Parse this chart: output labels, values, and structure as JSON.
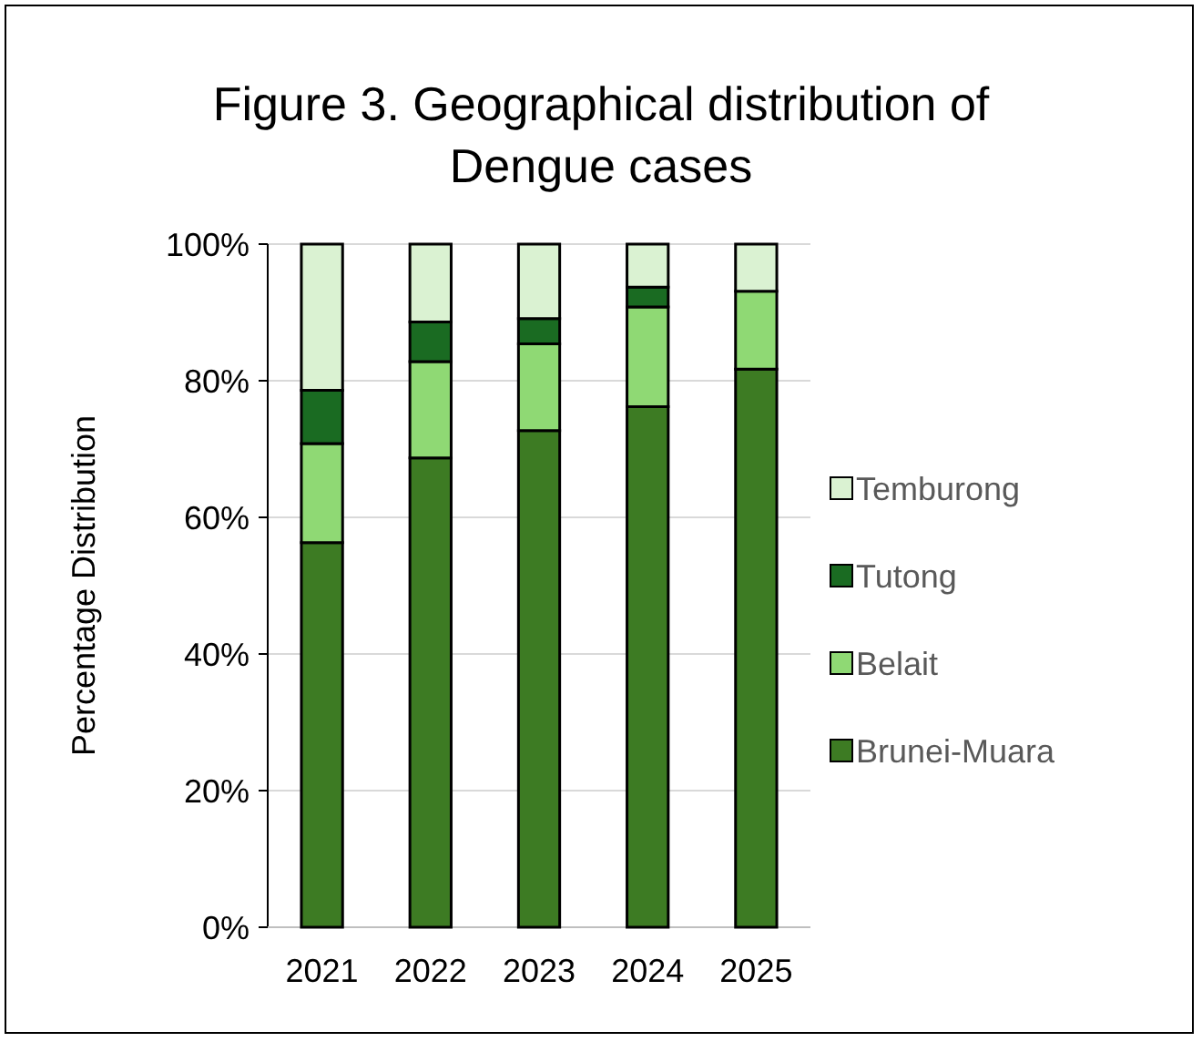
{
  "chart_data": {
    "type": "bar",
    "title": "Figure 3. Geographical distribution of Dengue cases",
    "ylabel": "Percentage Distribution",
    "categories": [
      "2021",
      "2022",
      "2023",
      "2024",
      "2025"
    ],
    "stacked": true,
    "series": [
      {
        "name": "Brunei-Muara",
        "color": "#3d7b23",
        "values": [
          56.3,
          68.7,
          72.7,
          76.2,
          81.7
        ]
      },
      {
        "name": "Belait",
        "color": "#8fd974",
        "values": [
          14.5,
          14.1,
          12.7,
          14.6,
          11.4
        ]
      },
      {
        "name": "Tutong",
        "color": "#1a6b22",
        "values": [
          7.8,
          5.8,
          3.7,
          2.9,
          0
        ]
      },
      {
        "name": "Temburong",
        "color": "#daf2d2",
        "values": [
          21.4,
          11.4,
          10.9,
          6.3,
          6.9
        ]
      }
    ],
    "ylim": [
      0,
      100
    ],
    "yticks": [
      {
        "value": 0,
        "label": "0%"
      },
      {
        "value": 20,
        "label": "20%"
      },
      {
        "value": 40,
        "label": "40%"
      },
      {
        "value": 60,
        "label": "60%"
      },
      {
        "value": 80,
        "label": "80%"
      },
      {
        "value": 100,
        "label": "100%"
      }
    ],
    "grid": true,
    "legend": "right"
  }
}
